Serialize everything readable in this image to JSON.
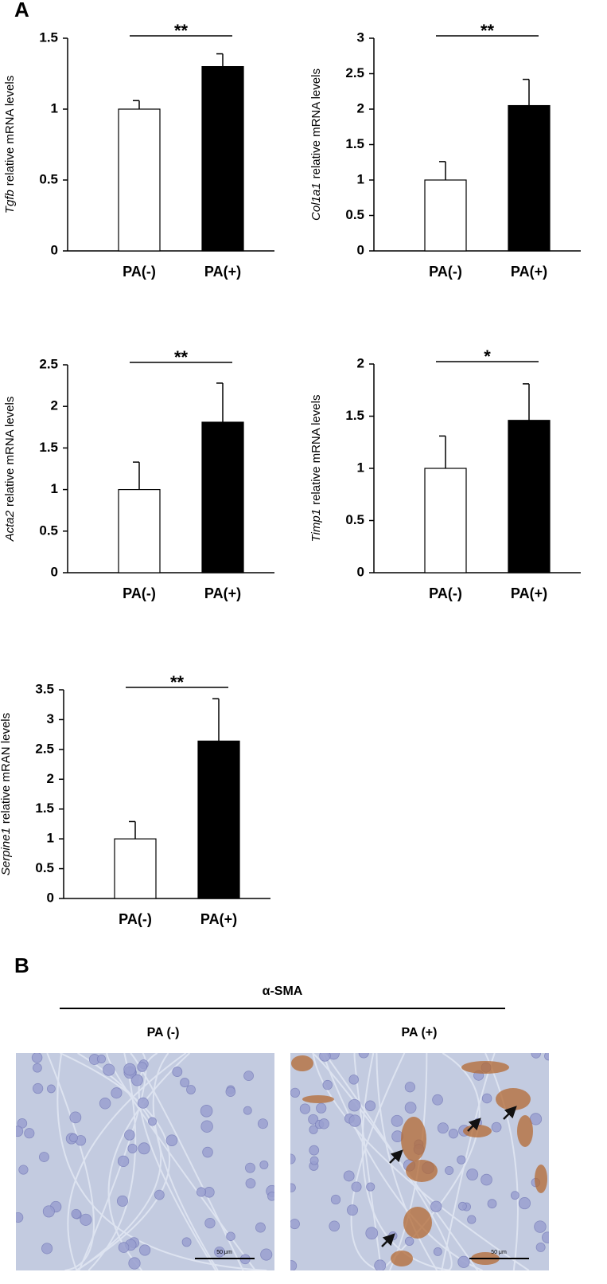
{
  "panel_labels": {
    "a": "A",
    "b": "B"
  },
  "chart_data": [
    {
      "type": "bar",
      "ylabel_gene": "Tgfb",
      "ylabel_rest": "relative mRNA levels",
      "categories": [
        "PA(-)",
        "PA(+)"
      ],
      "values": [
        1.0,
        1.3
      ],
      "errors": [
        0.06,
        0.09
      ],
      "colors": [
        "#ffffff",
        "#000000"
      ],
      "ylim": [
        0,
        1.5
      ],
      "yticks": [
        0,
        0.5,
        1,
        1.5
      ],
      "annotation": "**"
    },
    {
      "type": "bar",
      "ylabel_gene": "Col1a1",
      "ylabel_rest": "relative mRNA levels",
      "categories": [
        "PA(-)",
        "PA(+)"
      ],
      "values": [
        1.0,
        2.05
      ],
      "errors": [
        0.26,
        0.37
      ],
      "colors": [
        "#ffffff",
        "#000000"
      ],
      "ylim": [
        0,
        3
      ],
      "yticks": [
        0,
        0.5,
        1,
        1.5,
        2,
        2.5,
        3
      ],
      "annotation": "**"
    },
    {
      "type": "bar",
      "ylabel_gene": "Acta2",
      "ylabel_rest": "relative mRNA levels",
      "categories": [
        "PA(-)",
        "PA(+)"
      ],
      "values": [
        1.0,
        1.81
      ],
      "errors": [
        0.33,
        0.47
      ],
      "colors": [
        "#ffffff",
        "#000000"
      ],
      "ylim": [
        0,
        2.5
      ],
      "yticks": [
        0,
        0.5,
        1,
        1.5,
        2,
        2.5
      ],
      "annotation": "**"
    },
    {
      "type": "bar",
      "ylabel_gene": "Timp1",
      "ylabel_rest": "relative mRNA levels",
      "categories": [
        "PA(-)",
        "PA(+)"
      ],
      "values": [
        1.0,
        1.46
      ],
      "errors": [
        0.31,
        0.35
      ],
      "colors": [
        "#ffffff",
        "#000000"
      ],
      "ylim": [
        0,
        2
      ],
      "yticks": [
        0,
        0.5,
        1,
        1.5,
        2
      ],
      "annotation": "*"
    },
    {
      "type": "bar",
      "ylabel_gene": "Serpine1",
      "ylabel_rest": "relative mRAN levels",
      "categories": [
        "PA(-)",
        "PA(+)"
      ],
      "values": [
        1.0,
        2.64
      ],
      "errors": [
        0.29,
        0.71
      ],
      "colors": [
        "#ffffff",
        "#000000"
      ],
      "ylim": [
        0,
        3.5
      ],
      "yticks": [
        0,
        0.5,
        1,
        1.5,
        2,
        2.5,
        3,
        3.5
      ],
      "annotation": "**"
    }
  ],
  "panel_b": {
    "stain": "α-SMA",
    "groups": [
      "PA (-)",
      "PA (+)"
    ],
    "scale_bar": "50 μm"
  }
}
